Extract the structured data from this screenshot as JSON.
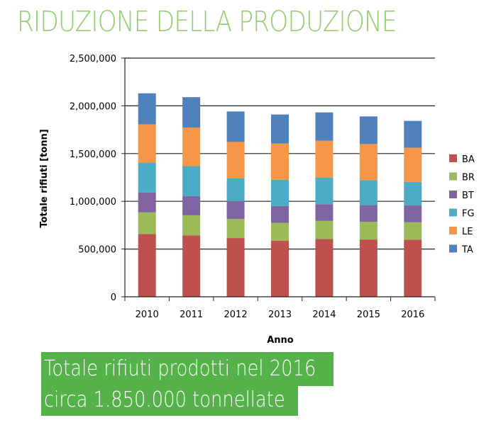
{
  "title": "RIDUZIONE DELLA PRODUZIONE",
  "highlight": {
    "line1": "Totale rifiuti prodotti nel 2016",
    "line2": "circa 1.850.000 tonnellate"
  },
  "chart_data": {
    "type": "bar",
    "stacked": true,
    "title": "",
    "xlabel": "Anno",
    "ylabel": "Totale rifiuti [tonn]",
    "ylim": [
      0,
      2500000
    ],
    "yticks": [
      0,
      500000,
      1000000,
      1500000,
      2000000,
      2500000
    ],
    "ytick_labels": [
      "0",
      "500,000",
      "1,000,000",
      "1,500,000",
      "2,000,000",
      "2,500,000"
    ],
    "grid": true,
    "legend": "right",
    "categories": [
      "2010",
      "2011",
      "2012",
      "2013",
      "2014",
      "2015",
      "2016"
    ],
    "series": [
      {
        "name": "BA",
        "color": "#c0504d",
        "values": [
          657000,
          642000,
          615000,
          588000,
          605000,
          600000,
          598000
        ]
      },
      {
        "name": "BR",
        "color": "#9bbb59",
        "values": [
          227000,
          212000,
          200000,
          187000,
          190000,
          185000,
          182000
        ]
      },
      {
        "name": "BT",
        "color": "#8064a2",
        "values": [
          207000,
          200000,
          187000,
          176000,
          175000,
          175000,
          178000
        ]
      },
      {
        "name": "FG",
        "color": "#4bacc6",
        "values": [
          314000,
          314000,
          237000,
          274000,
          279000,
          262000,
          245000
        ]
      },
      {
        "name": "LE",
        "color": "#f79646",
        "values": [
          402000,
          405000,
          383000,
          380000,
          386000,
          378000,
          358000
        ]
      },
      {
        "name": "TA",
        "color": "#4f81bd",
        "values": [
          324000,
          318000,
          319000,
          304000,
          296000,
          289000,
          281000
        ]
      }
    ]
  }
}
